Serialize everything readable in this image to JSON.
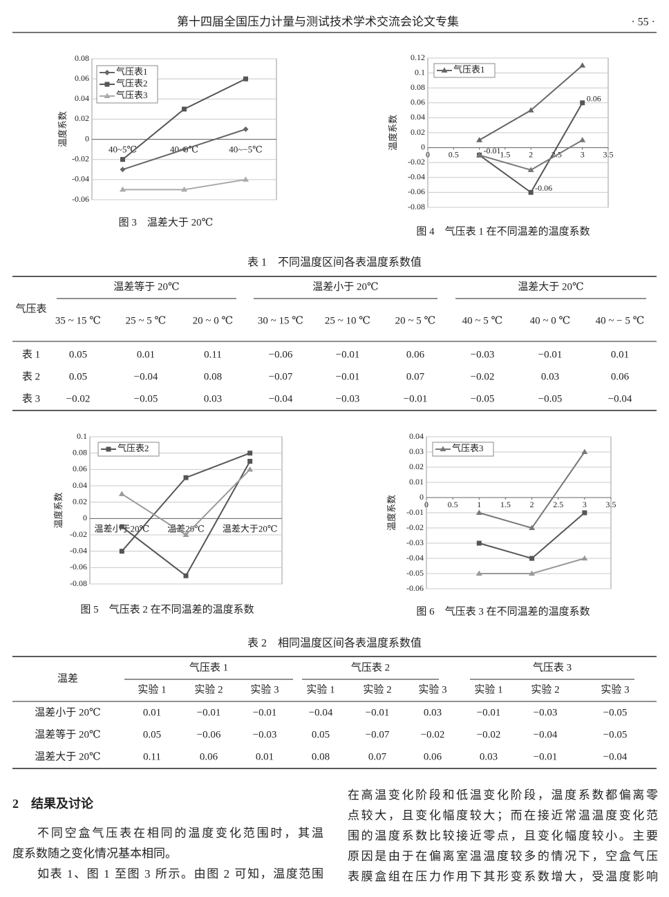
{
  "header": {
    "title": "第十四届全国压力计量与测试技术学术交流会论文专集",
    "page": "· 55 ·"
  },
  "chart_data": [
    {
      "type": "line",
      "caption": "图 3　温差大于 20℃",
      "y_label": "温度系数",
      "categories": [
        "40~5℃",
        "40~0℃",
        "40~−5℃"
      ],
      "ylim": [
        -0.06,
        0.08
      ],
      "yticks": [
        -0.06,
        -0.04,
        -0.02,
        0,
        0.02,
        0.04,
        0.06,
        0.08
      ],
      "grid": true,
      "legend": "upper left",
      "series": [
        {
          "name": "气压表1",
          "color": "#666666",
          "marker": "diamond",
          "values": [
            -0.03,
            -0.01,
            0.01
          ]
        },
        {
          "name": "气压表2",
          "color": "#555555",
          "marker": "square",
          "values": [
            -0.02,
            0.03,
            0.06
          ]
        },
        {
          "name": "气压表3",
          "color": "#aaaaaa",
          "marker": "triangle",
          "values": [
            -0.05,
            -0.05,
            -0.04
          ]
        }
      ]
    },
    {
      "type": "line",
      "caption": "图 4　气压表 1 在不同温差的温度系数",
      "y_label": "温度系数",
      "x": [
        1,
        2,
        3
      ],
      "xlim": [
        0,
        3.5
      ],
      "xticks": [
        0,
        0.5,
        1,
        1.5,
        2,
        2.5,
        3,
        3.5
      ],
      "ylim": [
        -0.08,
        0.12
      ],
      "yticks": [
        -0.08,
        -0.06,
        -0.04,
        -0.02,
        0,
        0.02,
        0.04,
        0.06,
        0.08,
        0.1,
        0.12
      ],
      "grid": true,
      "legend": "upper left",
      "series": [
        {
          "name": "气压表1",
          "color": "#666666",
          "marker": "triangle",
          "values": [
            0.01,
            0.05,
            0.11
          ]
        },
        {
          "color": "#555555",
          "marker": "square",
          "values": [
            -0.01,
            -0.06,
            0.06
          ],
          "data_labels": true
        },
        {
          "color": "#777777",
          "marker": "triangle",
          "values": [
            -0.01,
            -0.03,
            0.01
          ]
        }
      ]
    },
    {
      "type": "line",
      "caption": "图 5　气压表 2 在不同温差的温度系数",
      "y_label": "温度系数",
      "categories": [
        "温差小于20℃",
        "温差20℃",
        "温差大于20℃"
      ],
      "ylim": [
        -0.08,
        0.1
      ],
      "yticks": [
        -0.08,
        -0.06,
        -0.04,
        -0.02,
        0,
        0.02,
        0.04,
        0.06,
        0.08,
        0.1
      ],
      "grid": true,
      "legend": "upper left",
      "series": [
        {
          "name": "气压表2",
          "color": "#555555",
          "marker": "square",
          "values": [
            -0.04,
            0.05,
            0.08
          ]
        },
        {
          "color": "#555555",
          "marker": "square",
          "values": [
            -0.01,
            -0.07,
            0.07
          ]
        },
        {
          "color": "#999999",
          "marker": "triangle",
          "values": [
            0.03,
            -0.02,
            0.06
          ]
        }
      ]
    },
    {
      "type": "line",
      "caption": "图 6　气压表 3 在不同温差的温度系数",
      "y_label": "温度系数",
      "x": [
        1,
        2,
        3
      ],
      "xlim": [
        0,
        3.5
      ],
      "xticks": [
        0,
        0.5,
        1,
        1.5,
        2,
        2.5,
        3,
        3.5
      ],
      "ylim": [
        -0.06,
        0.04
      ],
      "yticks": [
        -0.06,
        -0.05,
        -0.04,
        -0.03,
        -0.02,
        -0.01,
        0,
        0.01,
        0.02,
        0.03,
        0.04
      ],
      "grid": true,
      "legend": "upper left",
      "series": [
        {
          "name": "气压表3",
          "color": "#777777",
          "marker": "triangle",
          "values": [
            -0.01,
            -0.02,
            0.03
          ]
        },
        {
          "color": "#555555",
          "marker": "square",
          "values": [
            -0.03,
            -0.04,
            -0.01
          ]
        },
        {
          "color": "#999999",
          "marker": "triangle",
          "values": [
            -0.05,
            -0.05,
            -0.04
          ]
        }
      ]
    }
  ],
  "table1": {
    "title": "表 1　不同温度区间各表温度系数值",
    "corner": "气压表",
    "groups": [
      "温差等于 20℃",
      "温差小于 20℃",
      "温差大于 20℃"
    ],
    "columns": [
      "35 ~ 15 ℃",
      "25 ~ 5 ℃",
      "20 ~ 0 ℃",
      "30 ~ 15 ℃",
      "25 ~ 10 ℃",
      "20 ~ 5 ℃",
      "40 ~ 5 ℃",
      "40 ~ 0 ℃",
      "40 ~ − 5 ℃"
    ],
    "rows": [
      {
        "label": "表 1",
        "values": [
          "0.05",
          "0.01",
          "0.11",
          "−0.06",
          "−0.01",
          "0.06",
          "−0.03",
          "−0.01",
          "0.01"
        ]
      },
      {
        "label": "表 2",
        "values": [
          "0.05",
          "−0.04",
          "0.08",
          "−0.07",
          "−0.01",
          "0.07",
          "−0.02",
          "0.03",
          "0.06"
        ]
      },
      {
        "label": "表 3",
        "values": [
          "−0.02",
          "−0.05",
          "0.03",
          "−0.04",
          "−0.03",
          "−0.01",
          "−0.05",
          "−0.05",
          "−0.04"
        ]
      }
    ]
  },
  "table2": {
    "title": "表 2　相同温度区间各表温度系数值",
    "corner": "温差",
    "groups": [
      "气压表 1",
      "气压表 2",
      "气压表 3"
    ],
    "columns": [
      "实验 1",
      "实验 2",
      "实验 3",
      "实验 1",
      "实验 2",
      "实验 3",
      "实验 1",
      "实验 2",
      "实验 3"
    ],
    "rows": [
      {
        "label": "温差小于 20℃",
        "values": [
          "0.01",
          "−0.01",
          "−0.01",
          "−0.04",
          "−0.01",
          "0.03",
          "−0.01",
          "−0.03",
          "−0.05"
        ]
      },
      {
        "label": "温差等于 20℃",
        "values": [
          "0.05",
          "−0.06",
          "−0.03",
          "0.05",
          "−0.07",
          "−0.02",
          "−0.02",
          "−0.04",
          "−0.05"
        ]
      },
      {
        "label": "温差大于 20℃",
        "values": [
          "0.11",
          "0.06",
          "0.01",
          "0.08",
          "0.07",
          "0.06",
          "0.03",
          "−0.01",
          "−0.04"
        ]
      }
    ]
  },
  "section": {
    "heading": "2　结果及讨论",
    "left": [
      {
        "lines": [
          "不同空盒气压表在相同的温度变化范围时，其温",
          "度系数随之变化情况基本相同。"
        ]
      },
      {
        "lines": [
          "如表 1、图 1 至图 3 所示。由图 2 可知，温度范围"
        ]
      }
    ],
    "right": [
      {
        "lines": [
          "在高温变化阶段和低温变化阶段，温度系数都偏离零",
          "点较大，且变化幅度较大；而在接近常温温度变化范",
          "围的温度系数比较接近零点，且变化幅度较小。主要",
          "原因是由于在偏离室温温度较多的情况下，空盒气压",
          "表膜盒组在压力作用下其形变系数增大，受温度影响"
        ]
      }
    ]
  }
}
